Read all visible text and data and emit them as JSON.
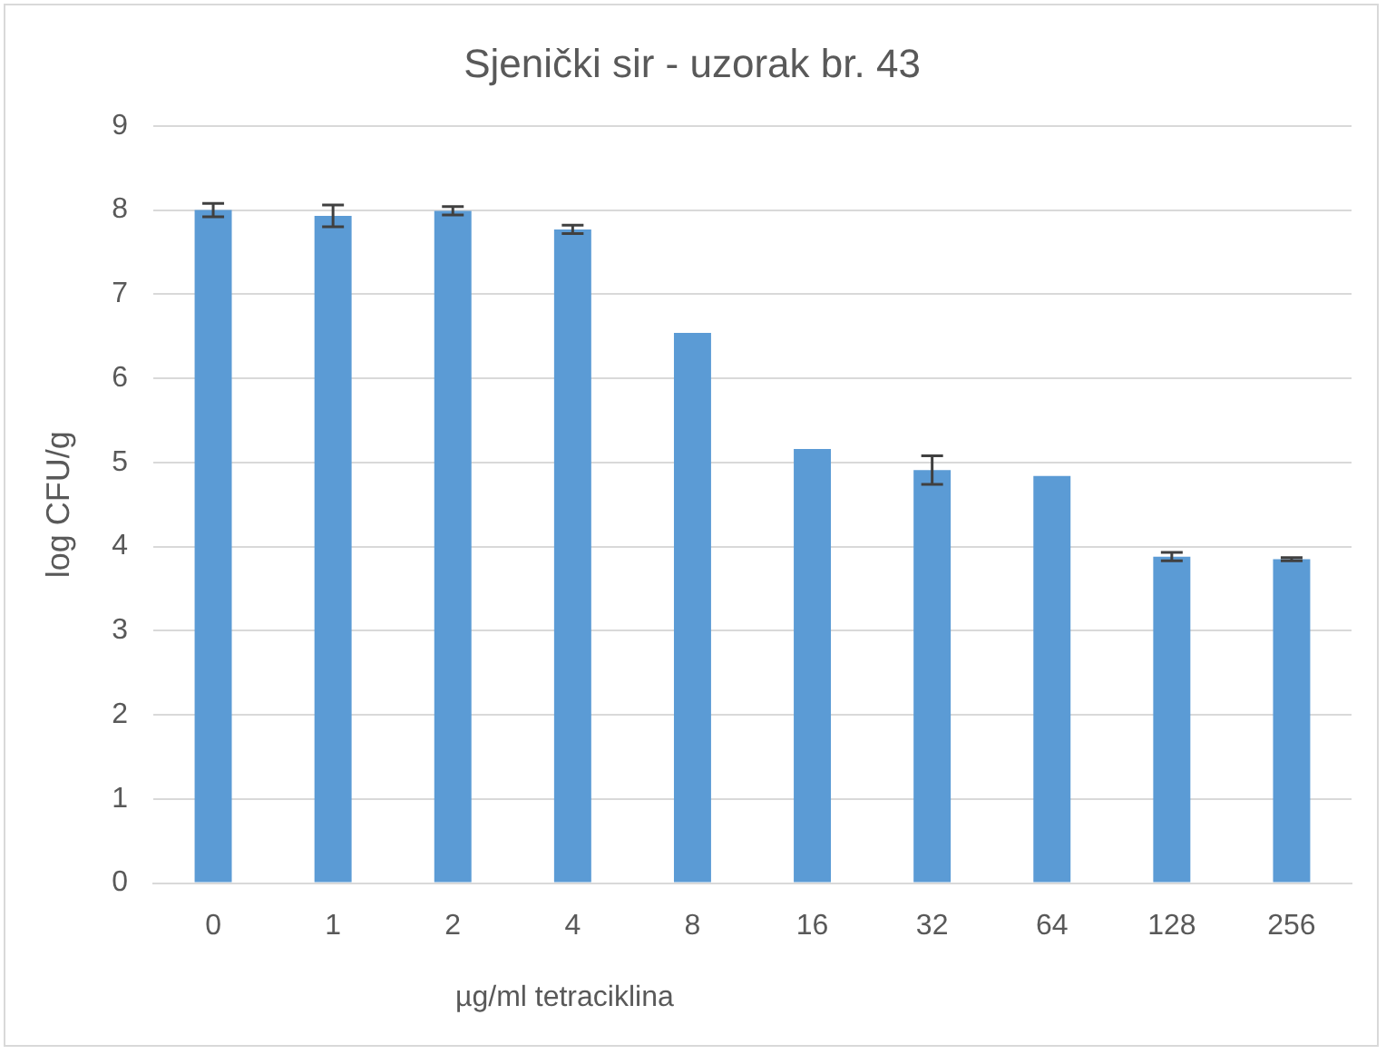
{
  "chart_data": {
    "type": "bar",
    "title": "Sjenički sir - uzorak br. 43",
    "xlabel": "µg/ml tetraciklina",
    "ylabel": "log CFU/g",
    "categories": [
      "0",
      "1",
      "2",
      "4",
      "8",
      "16",
      "32",
      "64",
      "128",
      "256"
    ],
    "values": [
      8.0,
      7.93,
      7.99,
      7.77,
      6.54,
      5.16,
      4.91,
      4.84,
      3.88,
      3.85
    ],
    "errors": [
      0.08,
      0.13,
      0.05,
      0.05,
      null,
      null,
      0.17,
      null,
      0.05,
      0.02
    ],
    "color": "#5b9bd5",
    "ylim": [
      0,
      9
    ],
    "yticks": [
      0,
      1,
      2,
      3,
      4,
      5,
      6,
      7,
      8,
      9
    ],
    "grid": "y"
  }
}
